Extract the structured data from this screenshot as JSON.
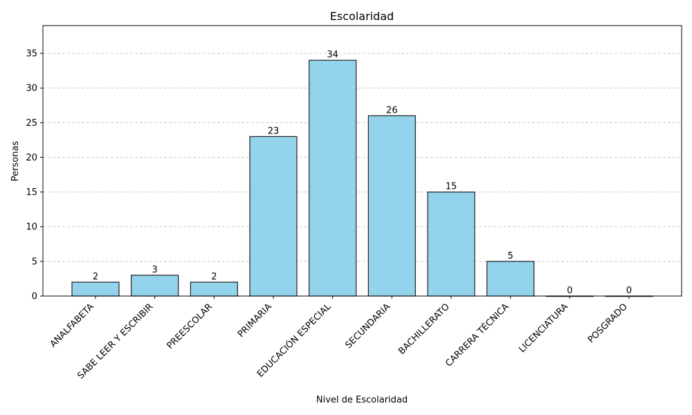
{
  "chart_data": {
    "type": "bar",
    "title": "Escolaridad",
    "xlabel": "Nivel de Escolaridad",
    "ylabel": "Personas",
    "categories": [
      "ANALFABETA",
      "SABE LEER  Y ESCRIBIR",
      "PREESCOLAR",
      "PRIMARIA",
      "EDUCACIÓN ESPECIAL",
      "SECUNDARIA",
      "BACHILLERATO",
      "CARRERA TÉCNICA",
      "LICENCIATURA",
      "POSGRADO"
    ],
    "values": [
      2,
      3,
      2,
      23,
      34,
      26,
      15,
      5,
      0,
      0
    ],
    "ylim": [
      0,
      39
    ],
    "yticks": [
      0,
      5,
      10,
      15,
      20,
      25,
      30,
      35
    ],
    "grid": "y-dashed",
    "data_labels": true,
    "colors": {
      "bar_fill": "#93d3ec",
      "bar_edge": "#1f1f1f",
      "grid": "#c8c8c8"
    }
  }
}
